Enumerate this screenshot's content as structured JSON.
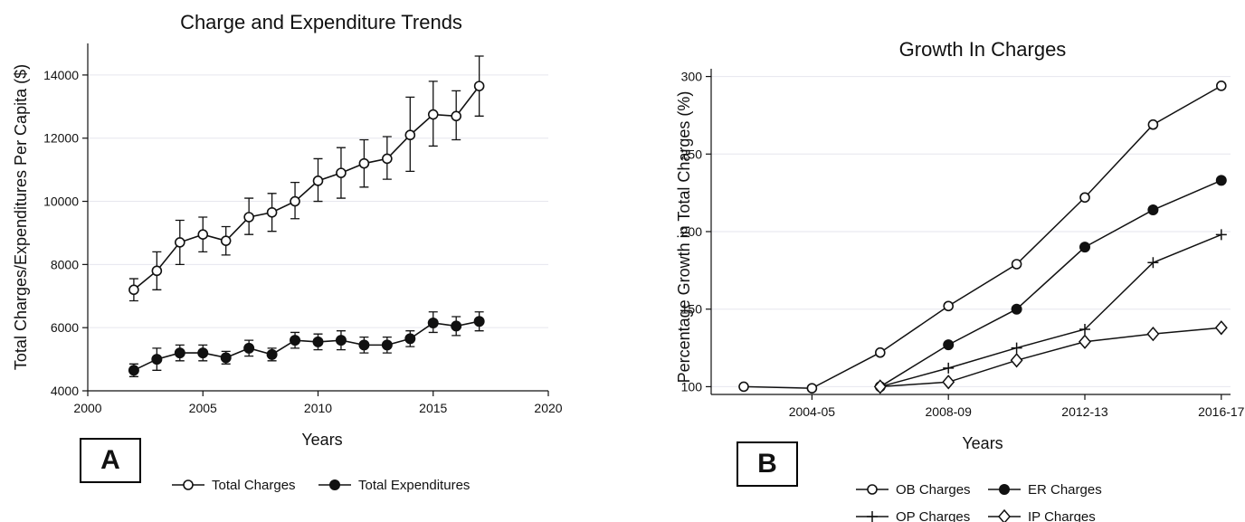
{
  "chart_data": [
    {
      "type": "line",
      "title": "Charge and Expenditure Trends",
      "xlabel": "Years",
      "ylabel": "Total Charges/Expenditures Per Capita ($)",
      "xlim": [
        2000,
        2020
      ],
      "ylim": [
        4000,
        15000
      ],
      "xticks": [
        "2000",
        "2005",
        "2010",
        "2015",
        "2020"
      ],
      "yticks": [
        "4000",
        "6000",
        "8000",
        "10000",
        "12000",
        "14000"
      ],
      "grid": true,
      "legend_position": "bottom",
      "x": [
        2002,
        2003,
        2004,
        2005,
        2006,
        2007,
        2008,
        2009,
        2010,
        2011,
        2012,
        2013,
        2014,
        2015,
        2016,
        2017
      ],
      "series": [
        {
          "name": "Total Charges",
          "marker": "hollow-circle",
          "values": [
            7200,
            7800,
            8700,
            8950,
            8750,
            9500,
            9650,
            10000,
            10650,
            10900,
            11200,
            11350,
            12100,
            12750,
            12700,
            13650
          ],
          "lower": [
            6850,
            7200,
            8000,
            8400,
            8300,
            8950,
            9050,
            9450,
            10000,
            10100,
            10450,
            10700,
            10950,
            11750,
            11950,
            12700
          ],
          "upper": [
            7550,
            8400,
            9400,
            9500,
            9200,
            10100,
            10250,
            10600,
            11350,
            11700,
            11950,
            12050,
            13300,
            13800,
            13500,
            14600
          ]
        },
        {
          "name": "Total Expenditures",
          "marker": "filled-circle",
          "values": [
            4650,
            5000,
            5200,
            5200,
            5050,
            5350,
            5150,
            5600,
            5550,
            5600,
            5450,
            5450,
            5650,
            6150,
            6050,
            6200
          ],
          "lower": [
            4450,
            4650,
            4950,
            4950,
            4850,
            5100,
            4950,
            5350,
            5300,
            5300,
            5200,
            5200,
            5400,
            5850,
            5750,
            5900
          ],
          "upper": [
            4850,
            5350,
            5450,
            5450,
            5250,
            5600,
            5350,
            5850,
            5800,
            5900,
            5700,
            5700,
            5900,
            6500,
            6350,
            6500
          ]
        }
      ],
      "panel_label": "A"
    },
    {
      "type": "line",
      "title": "Growth In Charges",
      "xlabel": "Years",
      "ylabel": "Percentage Growth in Total Charges (%)",
      "ylim": [
        95,
        305
      ],
      "yticks": [
        "100",
        "150",
        "200",
        "250",
        "300"
      ],
      "xticks": [
        "2004-05",
        "2008-09",
        "2012-13",
        "2016-17"
      ],
      "grid": true,
      "legend_position": "bottom",
      "x": [
        "2002-03",
        "2004-05",
        "2006-07",
        "2008-09",
        "2010-11",
        "2012-13",
        "2014-15",
        "2016-17"
      ],
      "series": [
        {
          "name": "OB Charges",
          "marker": "hollow-circle",
          "values": [
            100,
            99,
            122,
            152,
            179,
            222,
            269,
            294
          ]
        },
        {
          "name": "ER Charges",
          "marker": "filled-circle",
          "values": [
            null,
            null,
            100,
            127,
            150,
            190,
            214,
            233
          ]
        },
        {
          "name": "OP Charges",
          "marker": "plus",
          "values": [
            null,
            null,
            100,
            112,
            125,
            137,
            180,
            198
          ]
        },
        {
          "name": "IP Charges",
          "marker": "hollow-diamond",
          "values": [
            null,
            null,
            100,
            103,
            117,
            129,
            134,
            138
          ]
        }
      ],
      "panel_label": "B"
    }
  ]
}
